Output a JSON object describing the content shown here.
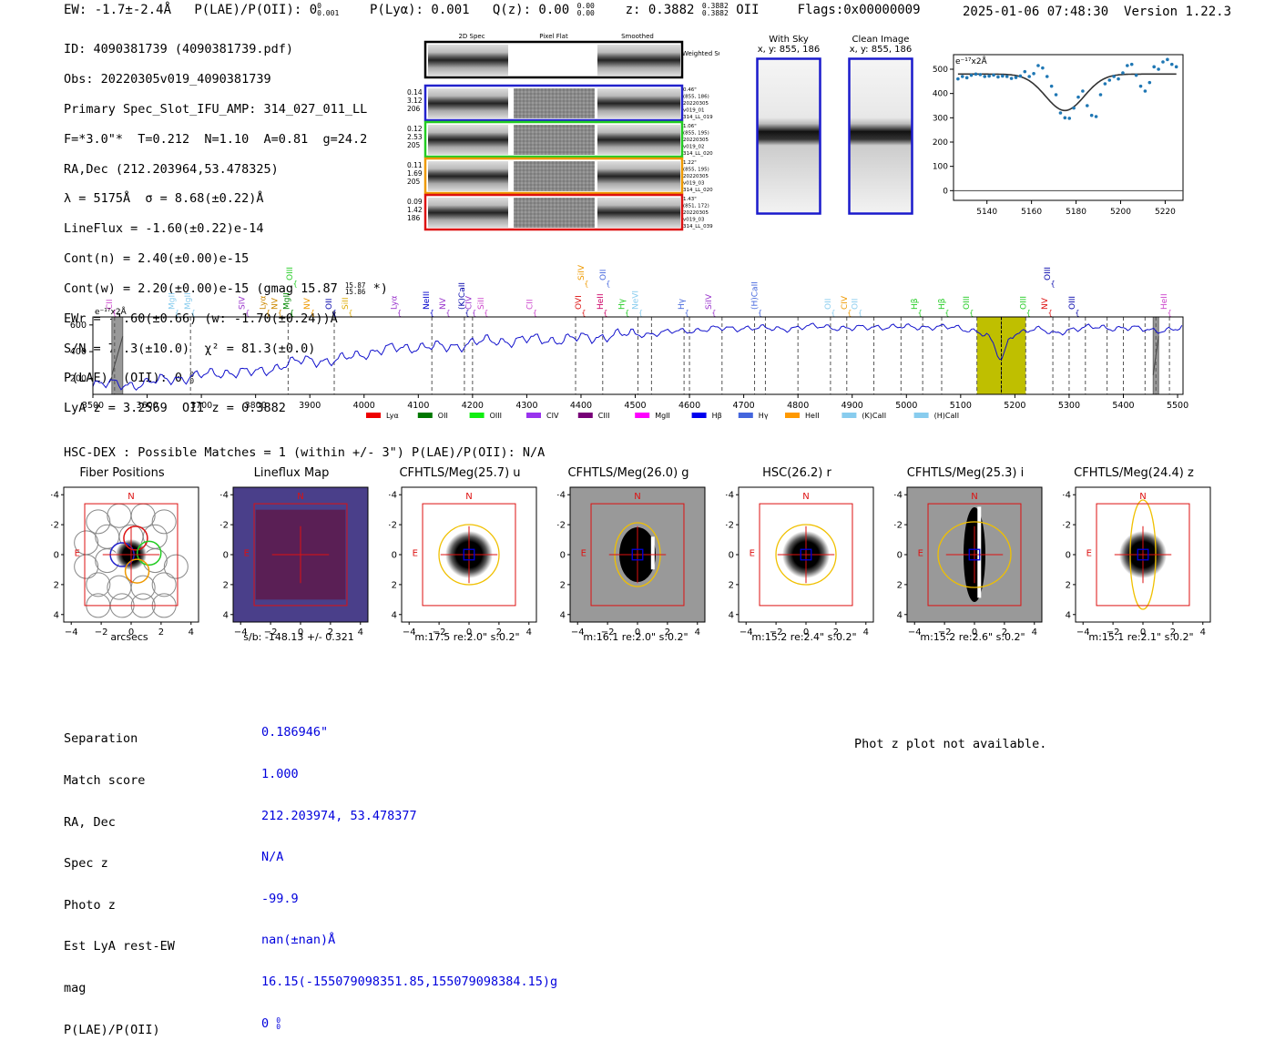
{
  "header": {
    "ew": "EW: -1.7±-2.4Å",
    "plae_label": "P(LAE)/P(OII): 0",
    "plae_sup": "0",
    "plae_sub": "0.001",
    "plya": "P(Lyα): 0.001",
    "qz_label": "Q(z): 0.00",
    "qz_sup": "0.00",
    "qz_sub": "0.00",
    "z_label": "z: 0.3882",
    "z_sup": "0.3882",
    "z_sub": "0.3882",
    "z_line": "OII",
    "flags": "Flags:0x00000009",
    "timestamp": "2025-01-06 07:48:30",
    "version": "Version 1.22.3"
  },
  "info": {
    "id": "ID: 4090381739 (4090381739.pdf)",
    "obs": "Obs: 20220305v019_4090381739",
    "primary": "Primary Spec_Slot_IFU_AMP: 314_027_011_LL",
    "fit": "F=*3.0\"*  T=0.212  N=1.10  A=0.81  g=24.2",
    "radec": "RA,Dec (212.203964,53.478325)",
    "lambda": "λ = 5175Å  σ = 8.68(±0.22)Å",
    "lineflux": "LineFlux = -1.60(±0.22)e-14",
    "contn": "Cont(n) = 2.40(±0.00)e-15",
    "contw": "Cont(w) = 2.20(±0.00)e-15 (gmag 15.87",
    "contw_sup": "15.87",
    "contw_sub": "15.86",
    "contw_end": "*)",
    "ewr": "EWr = -1.60(±0.66) (w: -1.70(±0.24))Å",
    "sn": "S/N = 74.3(±10.0)  χ² = 81.3(±0.0)",
    "plae": "P(LAE)/P(OII): 0",
    "plae_sup": "0",
    "plae_sub": "0",
    "lyaz": "LyA z = 3.2569  OII z = 0.3882"
  },
  "spec2d": {
    "col_labels": [
      "2D Spec",
      "Pixel Flat",
      "Smoothed"
    ],
    "sum_label": "Weighted Sum",
    "rows": [
      {
        "left": [
          "0.14",
          "3.12",
          "206"
        ],
        "right": [
          "0.46\"",
          "(855, 186)",
          "20220305",
          "v019_01",
          "314_LL_019"
        ],
        "color": "#2222cc"
      },
      {
        "left": [
          "0.12",
          "2.53",
          "205"
        ],
        "right": [
          "1.06\"",
          "(855, 195)",
          "20220305",
          "v019_02",
          "314_LL_020"
        ],
        "color": "#22cc22"
      },
      {
        "left": [
          "0.11",
          "1.69",
          "205"
        ],
        "right": [
          "1.22\"",
          "(855, 195)",
          "20220305",
          "v019_03",
          "314_LL_020"
        ],
        "color": "#ee9900"
      },
      {
        "left": [
          "0.09",
          "1.42",
          "186"
        ],
        "right": [
          "1.43\"",
          "(851, 172)",
          "20220305",
          "v019_03",
          "314_LL_039"
        ],
        "color": "#dd1111"
      }
    ]
  },
  "sky": {
    "with_sky_title": "With Sky",
    "with_sky_xy": "x, y: 855, 186",
    "clean_title": "Clean Image",
    "clean_xy": "x, y: 855, 186"
  },
  "chart_data": [
    {
      "type": "scatter",
      "id": "line-fit",
      "ylabel_units": "e⁻¹⁷x2Å",
      "xlim": [
        5125,
        5228
      ],
      "ylim": [
        -40,
        560
      ],
      "xticks": [
        5140,
        5160,
        5180,
        5200,
        5220
      ],
      "yticks": [
        0,
        100,
        200,
        300,
        400,
        500
      ],
      "points_x": [
        5127,
        5129,
        5131,
        5133,
        5135,
        5137,
        5139,
        5141,
        5143,
        5145,
        5147,
        5149,
        5151,
        5153,
        5155,
        5157,
        5159,
        5161,
        5163,
        5165,
        5167,
        5169,
        5171,
        5173,
        5175,
        5177,
        5179,
        5181,
        5183,
        5185,
        5187,
        5189,
        5191,
        5193,
        5195,
        5197,
        5199,
        5201,
        5203,
        5205,
        5207,
        5209,
        5211,
        5213,
        5215,
        5217,
        5219,
        5221,
        5223,
        5225
      ],
      "points_y": [
        460,
        470,
        465,
        475,
        480,
        478,
        470,
        472,
        476,
        468,
        472,
        470,
        462,
        466,
        472,
        490,
        470,
        482,
        515,
        505,
        470,
        430,
        395,
        320,
        300,
        298,
        340,
        385,
        410,
        350,
        310,
        305,
        395,
        440,
        455,
        470,
        460,
        485,
        515,
        520,
        475,
        430,
        410,
        445,
        510,
        500,
        530,
        540,
        520,
        510
      ],
      "fit": {
        "continuum": 480,
        "center": 5175,
        "sigma": 8.68,
        "depth": 150
      }
    },
    {
      "type": "line",
      "id": "full-spectrum",
      "ylabel_units": "e⁻¹⁷x2Å",
      "xlim": [
        3500,
        5510
      ],
      "ylim": [
        80,
        660
      ],
      "xticks": [
        3500,
        3600,
        3700,
        3800,
        3900,
        4000,
        4100,
        4200,
        4300,
        4400,
        4500,
        4600,
        4700,
        4800,
        4900,
        5000,
        5100,
        5200,
        5300,
        5400,
        5500
      ],
      "yticks": [
        200,
        400,
        600
      ],
      "anchors_x": [
        3500,
        3550,
        3600,
        3650,
        3700,
        3750,
        3800,
        3850,
        3900,
        3950,
        4000,
        4050,
        4100,
        4150,
        4200,
        4250,
        4300,
        4350,
        4400,
        4450,
        4500,
        4550,
        4600,
        4650,
        4700,
        4750,
        4800,
        4850,
        4900,
        4950,
        5000,
        5050,
        5100,
        5130,
        5150,
        5160,
        5170,
        5175,
        5180,
        5190,
        5200,
        5230,
        5250,
        5270,
        5300,
        5350,
        5400,
        5450,
        5500,
        5510
      ],
      "anchors_y": [
        160,
        150,
        165,
        200,
        220,
        250,
        240,
        300,
        340,
        330,
        390,
        420,
        440,
        430,
        470,
        480,
        490,
        490,
        500,
        520,
        530,
        540,
        560,
        570,
        580,
        570,
        580,
        590,
        570,
        590,
        580,
        590,
        570,
        560,
        520,
        450,
        360,
        320,
        380,
        500,
        540,
        570,
        560,
        530,
        570,
        580,
        580,
        560,
        570,
        575
      ],
      "masked": [
        [
          3535,
          3555
        ],
        [
          5455,
          5465
        ]
      ],
      "highlight": [
        5130,
        5220
      ],
      "line_center": 5175,
      "markers": [
        {
          "label": "CII",
          "x": 3535,
          "color": "#cc44cc",
          "row": 0
        },
        {
          "label": "MgII",
          "x": 3650,
          "color": "#88ccee",
          "row": 0
        },
        {
          "label": "MgII",
          "x": 3680,
          "color": "#88ccee",
          "row": 0
        },
        {
          "label": "SIV",
          "x": 3780,
          "color": "#9933cc",
          "row": 0
        },
        {
          "label": "Lyα",
          "x": 3818,
          "color": "#cc8800",
          "row": 0
        },
        {
          "label": "NV",
          "x": 3840,
          "color": "#cc8800",
          "row": 0
        },
        {
          "label": "MgII",
          "x": 3862,
          "color": "#008800",
          "row": 0
        },
        {
          "label": "OIII",
          "x": 3868,
          "color": "#22cc22",
          "row": 1
        },
        {
          "label": "NV",
          "x": 3900,
          "color": "#ee9900",
          "row": 0
        },
        {
          "label": "OII",
          "x": 3940,
          "color": "#0000aa",
          "row": 0
        },
        {
          "label": "SiII",
          "x": 3970,
          "color": "#ddaa00",
          "row": 0
        },
        {
          "label": "Lyα",
          "x": 4060,
          "color": "#9933cc",
          "row": 0
        },
        {
          "label": "NeIII",
          "x": 4120,
          "color": "#0000cc",
          "row": 0
        },
        {
          "label": "NV",
          "x": 4150,
          "color": "#9933cc",
          "row": 0
        },
        {
          "label": "(K)CaII",
          "x": 4185,
          "color": "#0000aa",
          "row": 0
        },
        {
          "label": "CIV",
          "x": 4198,
          "color": "#9933cc",
          "row": 0
        },
        {
          "label": "SiII",
          "x": 4220,
          "color": "#cc44cc",
          "row": 0
        },
        {
          "label": "CII",
          "x": 4310,
          "color": "#cc44cc",
          "row": 0
        },
        {
          "label": "OVI",
          "x": 4400,
          "color": "#dd1111",
          "row": 0
        },
        {
          "label": "SiIV",
          "x": 4405,
          "color": "#ee9900",
          "row": 1
        },
        {
          "label": "HeII",
          "x": 4440,
          "color": "#cc0066",
          "row": 0
        },
        {
          "label": "OII",
          "x": 4445,
          "color": "#4466dd",
          "row": 1
        },
        {
          "label": "Hγ",
          "x": 4480,
          "color": "#22cc22",
          "row": 0
        },
        {
          "label": "NeVI",
          "x": 4505,
          "color": "#88ccee",
          "row": 0
        },
        {
          "label": "Hγ",
          "x": 4590,
          "color": "#4466dd",
          "row": 0
        },
        {
          "label": "SiIV",
          "x": 4640,
          "color": "#9933cc",
          "row": 0
        },
        {
          "label": "(H)CaII",
          "x": 4725,
          "color": "#4466dd",
          "row": 0
        },
        {
          "label": "OII",
          "x": 4860,
          "color": "#88ccee",
          "row": 0
        },
        {
          "label": "CIV",
          "x": 4890,
          "color": "#ee9900",
          "row": 0
        },
        {
          "label": "OII",
          "x": 4910,
          "color": "#88ccee",
          "row": 0
        },
        {
          "label": "Hβ",
          "x": 5020,
          "color": "#22cc22",
          "row": 0
        },
        {
          "label": "Hβ",
          "x": 5070,
          "color": "#22cc22",
          "row": 0
        },
        {
          "label": "OIII",
          "x": 5115,
          "color": "#22cc22",
          "row": 0
        },
        {
          "label": "OIII",
          "x": 5220,
          "color": "#22cc22",
          "row": 0
        },
        {
          "label": "NV",
          "x": 5260,
          "color": "#dd1111",
          "row": 0
        },
        {
          "label": "OIII",
          "x": 5265,
          "color": "#0000aa",
          "row": 1
        },
        {
          "label": "OIII",
          "x": 5310,
          "color": "#0000aa",
          "row": 0
        },
        {
          "label": "HeII",
          "x": 5480,
          "color": "#cc44cc",
          "row": 0
        }
      ],
      "dashed_lines": [
        3540,
        3680,
        3860,
        3945,
        4125,
        4185,
        4200,
        4390,
        4440,
        4505,
        4530,
        4590,
        4600,
        4660,
        4720,
        4740,
        4800,
        4860,
        4890,
        4940,
        4990,
        5030,
        5065,
        5130,
        5175,
        5220,
        5270,
        5300,
        5330,
        5370,
        5400,
        5440,
        5460,
        5485
      ],
      "legend": [
        {
          "label": "Lyα",
          "color": "#ee0000"
        },
        {
          "label": "OII",
          "color": "#007700"
        },
        {
          "label": "OIII",
          "color": "#11ee11"
        },
        {
          "label": "CIV",
          "color": "#9933ee"
        },
        {
          "label": "CIII",
          "color": "#770077"
        },
        {
          "label": "MgII",
          "color": "#ff00ff"
        },
        {
          "label": "Hβ",
          "color": "#0000ee"
        },
        {
          "label": "Hγ",
          "color": "#4466dd"
        },
        {
          "label": "HeII",
          "color": "#ff9900"
        },
        {
          "label": "(K)CaII",
          "color": "#88ccee"
        },
        {
          "label": "(H)CaII",
          "color": "#88ccee"
        }
      ]
    }
  ],
  "hsc": {
    "title": "HSC-DEX : Possible Matches = 1 (within +/- 3\")  P(LAE)/P(OII): N/A"
  },
  "cutouts": [
    {
      "title": "Fiber Positions",
      "caption": "arcsecs"
    },
    {
      "title": "Lineflux Map",
      "caption": "s/b: -148.13 +/- 0.321"
    },
    {
      "title": "CFHTLS/Meg(25.7) u",
      "caption": "m:17.5  re:2.0\"  s:0.2\""
    },
    {
      "title": "CFHTLS/Meg(26.0) g",
      "caption": "m:16.1  re:2.0\"  s:0.2\""
    },
    {
      "title": "HSC(26.2) r",
      "caption": "m:15.2  re:2.4\"  s:0.2\""
    },
    {
      "title": "CFHTLS/Meg(25.3) i",
      "caption": "m:15.2  re:2.6\"  s:0.2\""
    },
    {
      "title": "CFHTLS/Meg(24.4) z",
      "caption": "m:15.1  re:2.1\"  s:0.2\""
    }
  ],
  "cutout_axes": {
    "ticks": [
      "−4",
      "−2",
      "0",
      "2",
      "4"
    ],
    "north": "N",
    "east": "E"
  },
  "match_table": {
    "labels": [
      "Separation",
      "Match score",
      "RA, Dec",
      "Spec z",
      "Photo z",
      "Est LyA rest-EW",
      "mag",
      "P(LAE)/P(OII)"
    ],
    "values": [
      "0.186946\"",
      "1.000",
      "212.203974, 53.478377",
      "N/A",
      "-99.9",
      "nan(±nan)Å",
      "16.15(-155079098351.85,155079098384.15)g",
      "0"
    ],
    "plae_sup": "0",
    "plae_sub": "0"
  },
  "photz_msg": "Phot z plot not available."
}
